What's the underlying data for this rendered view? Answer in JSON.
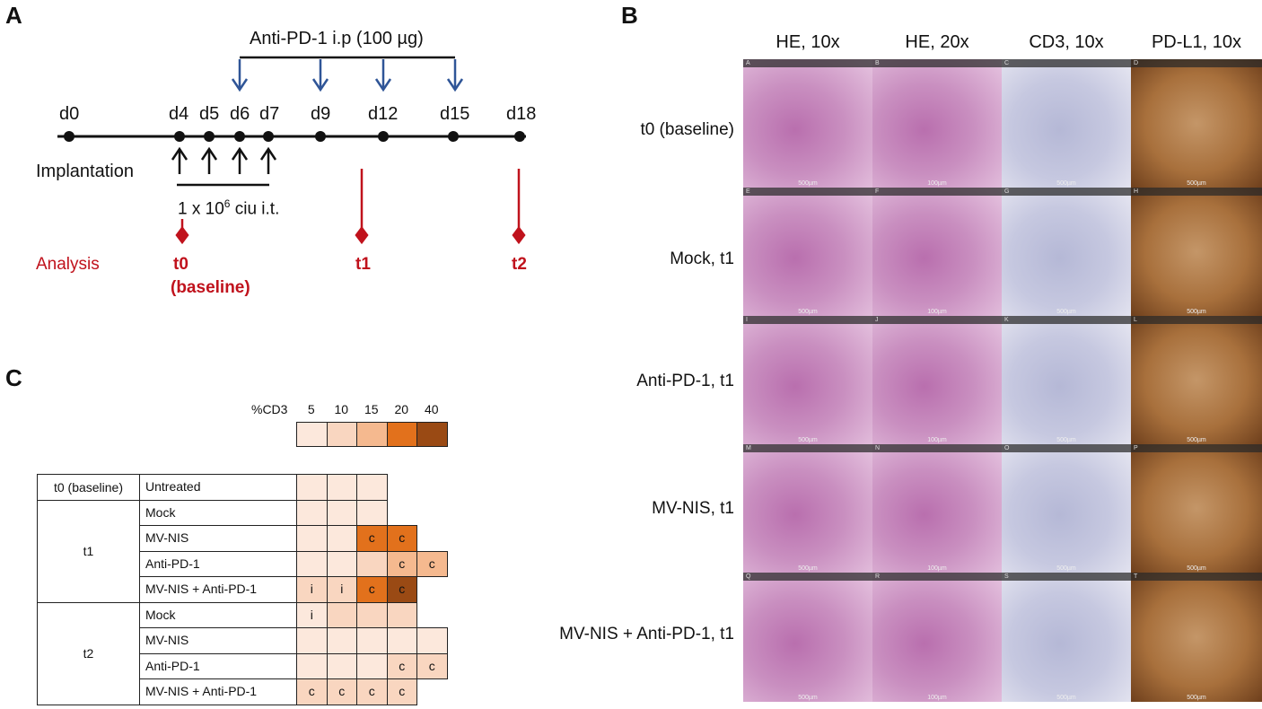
{
  "panels": {
    "a": "A",
    "b": "B",
    "c": "C"
  },
  "timeline": {
    "treatment_label": "Anti-PD-1 i.p (100 µg)",
    "days": [
      "d0",
      "d4",
      "d5",
      "d6",
      "d7",
      "d9",
      "d12",
      "d15",
      "d18"
    ],
    "implantation": "Implantation",
    "dose_prefix": "1 x 10",
    "dose_exp": "6",
    "dose_suffix": " ciu i.t.",
    "analysis_label": "Analysis",
    "t0": "t0",
    "t0_sub": "(baseline)",
    "t1": "t1",
    "t2": "t2"
  },
  "histology": {
    "columns": [
      "HE, 10x",
      "HE, 20x",
      "CD3, 10x",
      "PD-L1, 10x"
    ],
    "rows": [
      "t0 (baseline)",
      "Mock, t1",
      "Anti-PD-1, t1",
      "MV-NIS, t1",
      "MV-NIS + Anti-PD-1, t1"
    ],
    "tile_letters": [
      "A",
      "B",
      "C",
      "D",
      "E",
      "F",
      "G",
      "H",
      "I",
      "J",
      "K",
      "L",
      "M",
      "N",
      "O",
      "P",
      "Q",
      "R",
      "S",
      "T"
    ],
    "scale_labels": [
      "500µm",
      "100µm",
      "500µm",
      "500µm"
    ],
    "stain_colors": {
      "he": "#c98fc0",
      "cd3": "#c6c8e0",
      "pdl1": "#a8703c"
    }
  },
  "legend": {
    "title": "%CD3",
    "values": [
      "5",
      "10",
      "15",
      "20",
      "40"
    ],
    "colors": [
      "#fce8dc",
      "#f9d6c0",
      "#f5b98f",
      "#e2711c",
      "#9a4a14"
    ]
  },
  "table": {
    "rows": [
      {
        "time": "t0 (baseline)",
        "group": "Untreated",
        "cells": [
          [
            0,
            ""
          ],
          [
            0,
            ""
          ],
          [
            0,
            ""
          ]
        ]
      },
      {
        "time": "",
        "group": "Mock",
        "cells": [
          [
            0,
            ""
          ],
          [
            0,
            ""
          ],
          [
            0,
            ""
          ]
        ]
      },
      {
        "time": "t1",
        "group": "MV-NIS",
        "cells": [
          [
            0,
            ""
          ],
          [
            0,
            ""
          ],
          [
            3,
            "c"
          ],
          [
            3,
            "c"
          ]
        ]
      },
      {
        "time": "",
        "group": "Anti-PD-1",
        "cells": [
          [
            0,
            ""
          ],
          [
            0,
            ""
          ],
          [
            1,
            ""
          ],
          [
            2,
            "c"
          ],
          [
            2,
            "c"
          ]
        ]
      },
      {
        "time": "",
        "group": "MV-NIS + Anti-PD-1",
        "cells": [
          [
            1,
            "i"
          ],
          [
            1,
            "i"
          ],
          [
            3,
            "c"
          ],
          [
            4,
            "c"
          ]
        ]
      },
      {
        "time": "",
        "group": "Mock",
        "cells": [
          [
            0,
            "i"
          ],
          [
            1,
            ""
          ],
          [
            1,
            ""
          ],
          [
            1,
            ""
          ]
        ]
      },
      {
        "time": "t2",
        "group": "MV-NIS",
        "cells": [
          [
            0,
            ""
          ],
          [
            0,
            ""
          ],
          [
            0,
            ""
          ],
          [
            0,
            ""
          ],
          [
            0,
            ""
          ]
        ]
      },
      {
        "time": "",
        "group": "Anti-PD-1",
        "cells": [
          [
            0,
            ""
          ],
          [
            0,
            ""
          ],
          [
            0,
            ""
          ],
          [
            1,
            "c"
          ],
          [
            1,
            "c"
          ]
        ]
      },
      {
        "time": "",
        "group": "MV-NIS + Anti-PD-1",
        "cells": [
          [
            1,
            "c"
          ],
          [
            1,
            "c"
          ],
          [
            1,
            "c"
          ],
          [
            1,
            "c"
          ]
        ]
      }
    ]
  }
}
